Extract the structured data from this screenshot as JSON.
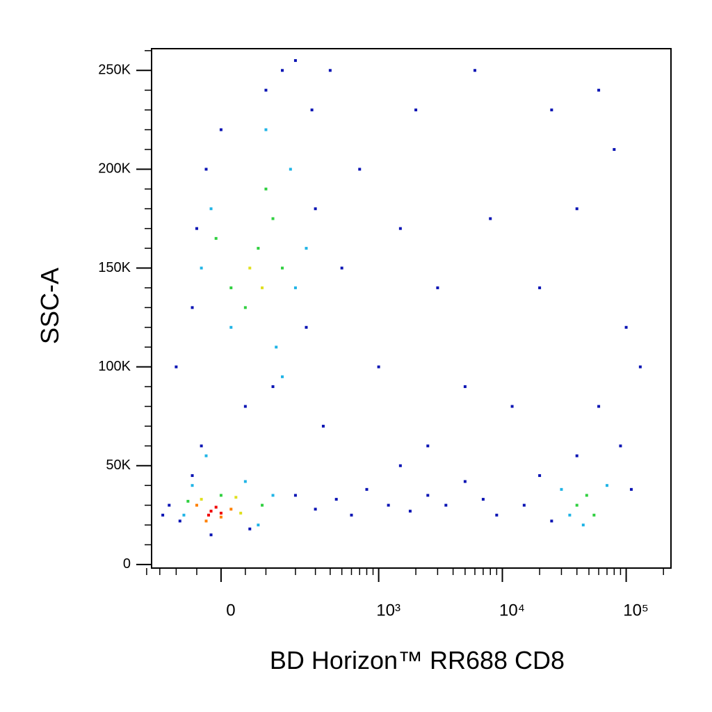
{
  "chart_data": {
    "type": "scatter",
    "x_label": "BD Horizon™ RR688 CD8",
    "y_label": "SSC-A",
    "xscale": "biexponential",
    "xlim": [
      -180,
      230000
    ],
    "ylim": [
      -1800,
      261000
    ],
    "xticks": [
      0,
      {
        "value": 1000,
        "label": "10³"
      },
      {
        "value": 10000,
        "label": "10⁴"
      },
      {
        "value": 100000,
        "label": "10⁵"
      }
    ],
    "xminorticks": [
      -200,
      -150,
      -100,
      -50,
      50,
      100,
      200,
      300,
      400,
      500,
      600,
      700,
      800,
      900,
      2000,
      3000,
      4000,
      5000,
      6000,
      7000,
      8000,
      9000,
      20000,
      30000,
      40000,
      50000,
      60000,
      70000,
      80000,
      90000,
      200000
    ],
    "yticks": [
      0,
      {
        "value": 50000,
        "label": "50K"
      },
      {
        "value": 100000,
        "label": "100K"
      },
      {
        "value": 150000,
        "label": "150K"
      },
      {
        "value": 200000,
        "label": "200K"
      },
      {
        "value": 250000,
        "label": "250K"
      }
    ],
    "yminorticks": [
      10000,
      20000,
      30000,
      40000,
      60000,
      70000,
      80000,
      90000,
      110000,
      120000,
      130000,
      140000,
      160000,
      170000,
      180000,
      190000,
      210000,
      220000,
      230000,
      240000,
      260000
    ],
    "series": [
      {
        "color": "#0a14b4",
        "x": [
          -120,
          -90,
          -60,
          -40,
          200,
          300,
          450,
          600,
          800,
          1200,
          1800,
          2500,
          3500,
          5000,
          7000,
          9000,
          15000,
          20000,
          25000,
          110000,
          90000,
          40000,
          -100,
          -60,
          -30,
          -50,
          250,
          300,
          280,
          200,
          150,
          100,
          0,
          500,
          700,
          1000,
          1500,
          2500,
          3000,
          5000,
          8000,
          12000,
          25000,
          40000,
          60000,
          80000,
          100000,
          130000,
          60000,
          -140,
          50,
          120,
          -20,
          60,
          350,
          400,
          2000,
          6000,
          1500,
          20000
        ],
        "y": [
          30000,
          22000,
          45000,
          60000,
          35000,
          28000,
          33000,
          25000,
          38000,
          30000,
          27000,
          35000,
          30000,
          42000,
          33000,
          25000,
          30000,
          45000,
          22000,
          38000,
          60000,
          55000,
          100000,
          130000,
          200000,
          170000,
          120000,
          180000,
          230000,
          255000,
          250000,
          240000,
          220000,
          150000,
          200000,
          100000,
          170000,
          60000,
          140000,
          90000,
          175000,
          80000,
          230000,
          180000,
          240000,
          210000,
          120000,
          100000,
          80000,
          25000,
          80000,
          90000,
          15000,
          18000,
          70000,
          250000,
          230000,
          250000,
          50000,
          140000
        ]
      },
      {
        "color": "#20b4e6",
        "x": [
          -60,
          50,
          80,
          -80,
          20,
          130,
          200,
          -20,
          180,
          100,
          250,
          -40,
          150,
          35000,
          70000,
          45000,
          30000,
          -30,
          120
        ],
        "y": [
          40000,
          42000,
          20000,
          25000,
          120000,
          110000,
          140000,
          180000,
          200000,
          220000,
          160000,
          150000,
          95000,
          25000,
          40000,
          20000,
          38000,
          55000,
          35000
        ]
      },
      {
        "color": "#30d040",
        "x": [
          20,
          80,
          120,
          50,
          150,
          -10,
          100,
          40000,
          55000,
          48000,
          0,
          90,
          -70
        ],
        "y": [
          140000,
          160000,
          175000,
          130000,
          150000,
          165000,
          190000,
          30000,
          25000,
          35000,
          35000,
          30000,
          32000
        ]
      },
      {
        "color": "#e0e020",
        "x": [
          60,
          90,
          -40,
          40,
          30
        ],
        "y": [
          150000,
          140000,
          33000,
          26000,
          34000
        ]
      },
      {
        "color": "#ff8000",
        "x": [
          -50,
          20,
          0,
          -30
        ],
        "y": [
          30000,
          28000,
          24000,
          22000
        ]
      },
      {
        "color": "#f00000",
        "x": [
          -20,
          -10,
          0,
          -25
        ],
        "y": [
          27000,
          29000,
          26000,
          25000
        ]
      }
    ]
  }
}
